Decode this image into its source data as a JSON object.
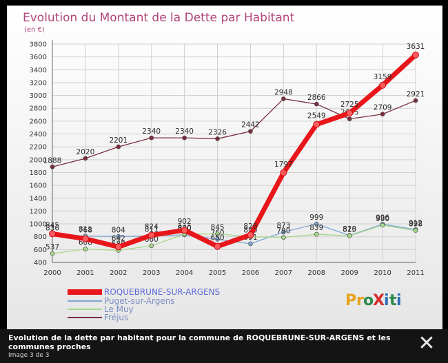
{
  "chart_data": {
    "type": "line",
    "title": "Evolution du Montant de la Dette par Habitant",
    "subtitle": "(en €)",
    "x": [
      "2000",
      "2001",
      "2002",
      "2003",
      "2004",
      "2005",
      "2006",
      "2007",
      "2008",
      "2009",
      "2010",
      "2011"
    ],
    "ylim": [
      400,
      3800
    ],
    "yticks": [
      "400",
      "600",
      "800",
      "1000",
      "1200",
      "1400",
      "1600",
      "1800",
      "2000",
      "2200",
      "2400",
      "2600",
      "2800",
      "3000",
      "3200",
      "3400",
      "3600",
      "3800"
    ],
    "grid": true,
    "legend_position": "bottom-left",
    "series": [
      {
        "name": "ROQUEBRUNE-SUR-ARGENS",
        "color": "#e8161a",
        "values": [
          845,
          768,
          642,
          824,
          902,
          650,
          828,
          1797,
          2549,
          2725,
          3159,
          3631
        ],
        "labels": [
          "845",
          "768",
          "642",
          "824",
          "902",
          "650",
          "828",
          "1797",
          "2549",
          "2725",
          "3159",
          "3631"
        ]
      },
      {
        "name": "Puget-sur-Argens",
        "color": "#7ea7d2",
        "values": [
          836,
          811,
          804,
          811,
          830,
          760,
          691,
          873,
          999,
          820,
          996,
          912
        ],
        "labels": [
          "836",
          "811",
          "804",
          "811",
          "830",
          "760",
          "691",
          "873",
          "999",
          "820",
          "996",
          "912"
        ]
      },
      {
        "name": "Le Muy",
        "color": "#a6d78b",
        "values": [
          537,
          608,
          588,
          660,
          840,
          845,
          800,
          790,
          839,
          815,
          980,
          898
        ],
        "labels": [
          "537",
          "608",
          "588",
          "660",
          "840",
          "845",
          "800",
          "790",
          "839",
          "815",
          "980",
          "898"
        ]
      },
      {
        "name": "Fréjus",
        "color": "#7a2e3d",
        "values": [
          1888,
          2020,
          2201,
          2340,
          2340,
          2326,
          2442,
          2948,
          2866,
          2635,
          2709,
          2921
        ],
        "labels": [
          "1888",
          "2020",
          "2201",
          "2340",
          "2340",
          "2326",
          "2442",
          "2948",
          "2866",
          "2635",
          "2709",
          "2921"
        ]
      }
    ]
  },
  "brand": {
    "logo_text": "ProXiti",
    "letters": [
      "P",
      "r",
      "o",
      "X",
      "i",
      "t",
      "i"
    ]
  },
  "caption": {
    "text": "Evolution de la dette par habitant pour la commune de ROQUEBRUNE-SUR-ARGENS et les communes proches",
    "counter": "Image 3 de 3",
    "close_label": "✕"
  }
}
